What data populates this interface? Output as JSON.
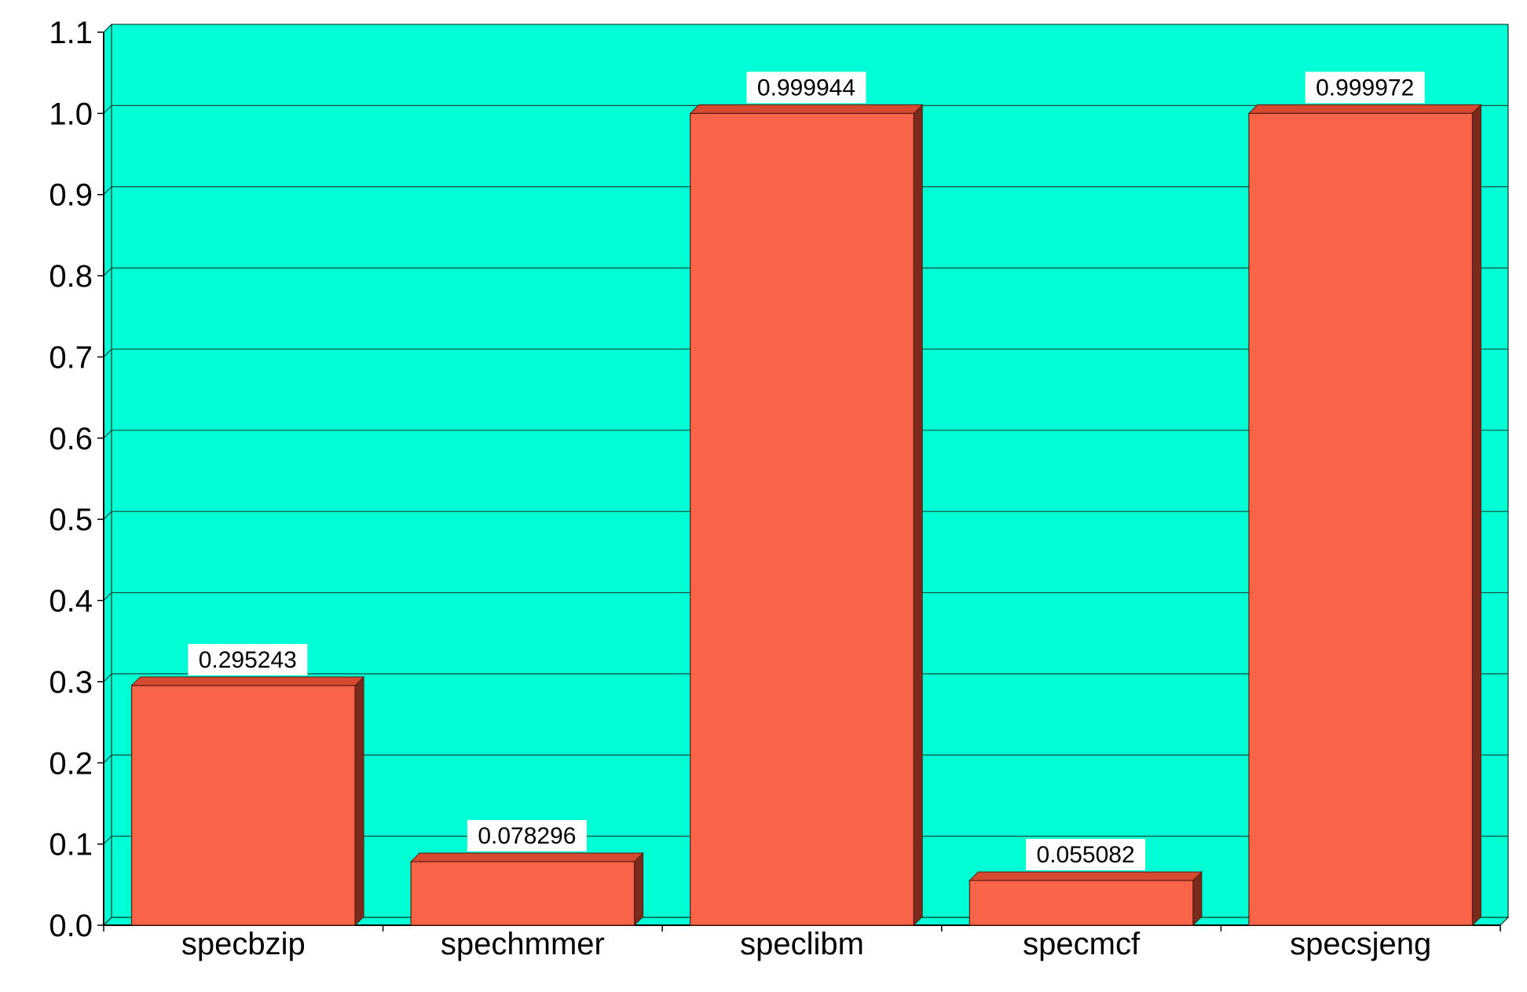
{
  "chart_data": {
    "type": "bar",
    "style": "3d",
    "title": "",
    "xlabel": "",
    "ylabel": "",
    "categories": [
      "specbzip",
      "spechmmer",
      "speclibm",
      "specmcf",
      "specsjeng"
    ],
    "values": [
      0.295243,
      0.078296,
      0.999944,
      0.055082,
      0.999972
    ],
    "data_labels": [
      "0.295243",
      "0.078296",
      "0.999944",
      "0.055082",
      "0.999972"
    ],
    "ylim": [
      0,
      1.1
    ],
    "yticks": [
      "0.0",
      "0.1",
      "0.2",
      "0.3",
      "0.4",
      "0.5",
      "0.6",
      "0.7",
      "0.8",
      "0.9",
      "1.0",
      "1.1"
    ],
    "grid": true,
    "legend": "none",
    "colors": {
      "plot_background": "#00FFD5",
      "bar_face": "#F86448",
      "bar_top": "#D54A30",
      "bar_side": "#7A2B1E",
      "bar_outline": "#5A1A10",
      "grid": "#1A4A40",
      "axis": "#000000",
      "label_box": "#FFFFFF"
    }
  }
}
